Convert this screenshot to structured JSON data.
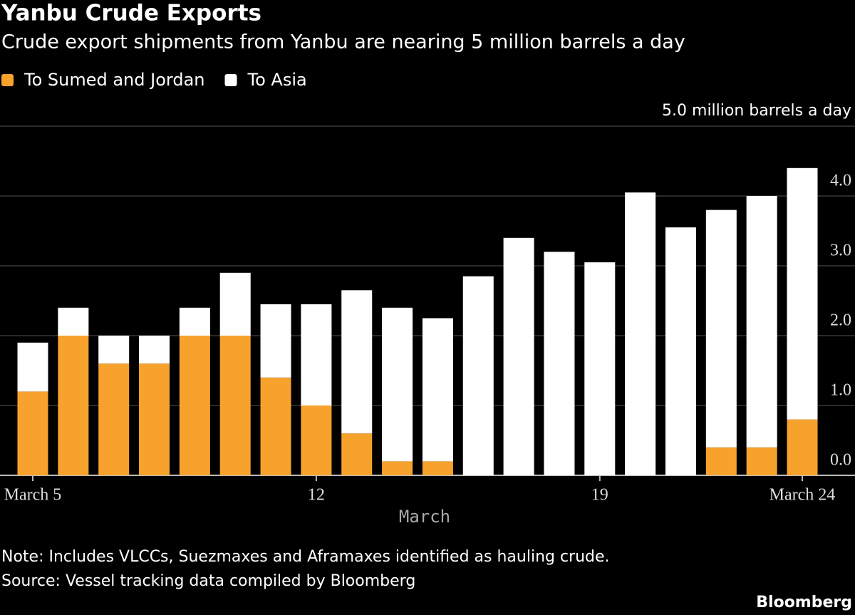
{
  "chart_data": {
    "type": "stacked_bar",
    "title": "Yanbu Crude Exports",
    "subtitle": "Crude export shipments from Yanbu are nearing 5 million barrels a day",
    "x_label": "March",
    "categories": [
      "March 5",
      null,
      null,
      null,
      null,
      null,
      null,
      "12",
      null,
      null,
      null,
      null,
      null,
      null,
      "19",
      null,
      null,
      null,
      null,
      "March 24"
    ],
    "series": [
      {
        "name": "To Sumed and Jordan",
        "color": "#f7a22d",
        "values": [
          1.2,
          2.0,
          1.6,
          1.6,
          2.0,
          2.0,
          1.4,
          1.0,
          0.6,
          0.2,
          0.2,
          0,
          0,
          0,
          0,
          0,
          0,
          0.4,
          0.4,
          0.8
        ]
      },
      {
        "name": "To Asia",
        "color": "#ffffff",
        "values": [
          0.7,
          0.4,
          0.4,
          0.4,
          0.4,
          0.9,
          1.05,
          1.45,
          2.05,
          2.2,
          2.05,
          2.85,
          3.4,
          3.2,
          3.05,
          4.05,
          3.55,
          3.4,
          3.6,
          3.6
        ]
      }
    ],
    "ylim": [
      0,
      5
    ],
    "yticks": [
      {
        "value": 0,
        "label": "0.0"
      },
      {
        "value": 1,
        "label": "1.0"
      },
      {
        "value": 2,
        "label": "2.0"
      },
      {
        "value": 3,
        "label": "3.0"
      },
      {
        "value": 4,
        "label": "4.0"
      },
      {
        "value": 5,
        "label": "5.0 million barrels a day"
      }
    ],
    "grid": true,
    "note": "Note: Includes VLCCs, Suezmaxes and Aframaxes identified as hauling crude.",
    "source": "Source: Vessel tracking data compiled by Bloomberg",
    "brand": "Bloomberg"
  }
}
